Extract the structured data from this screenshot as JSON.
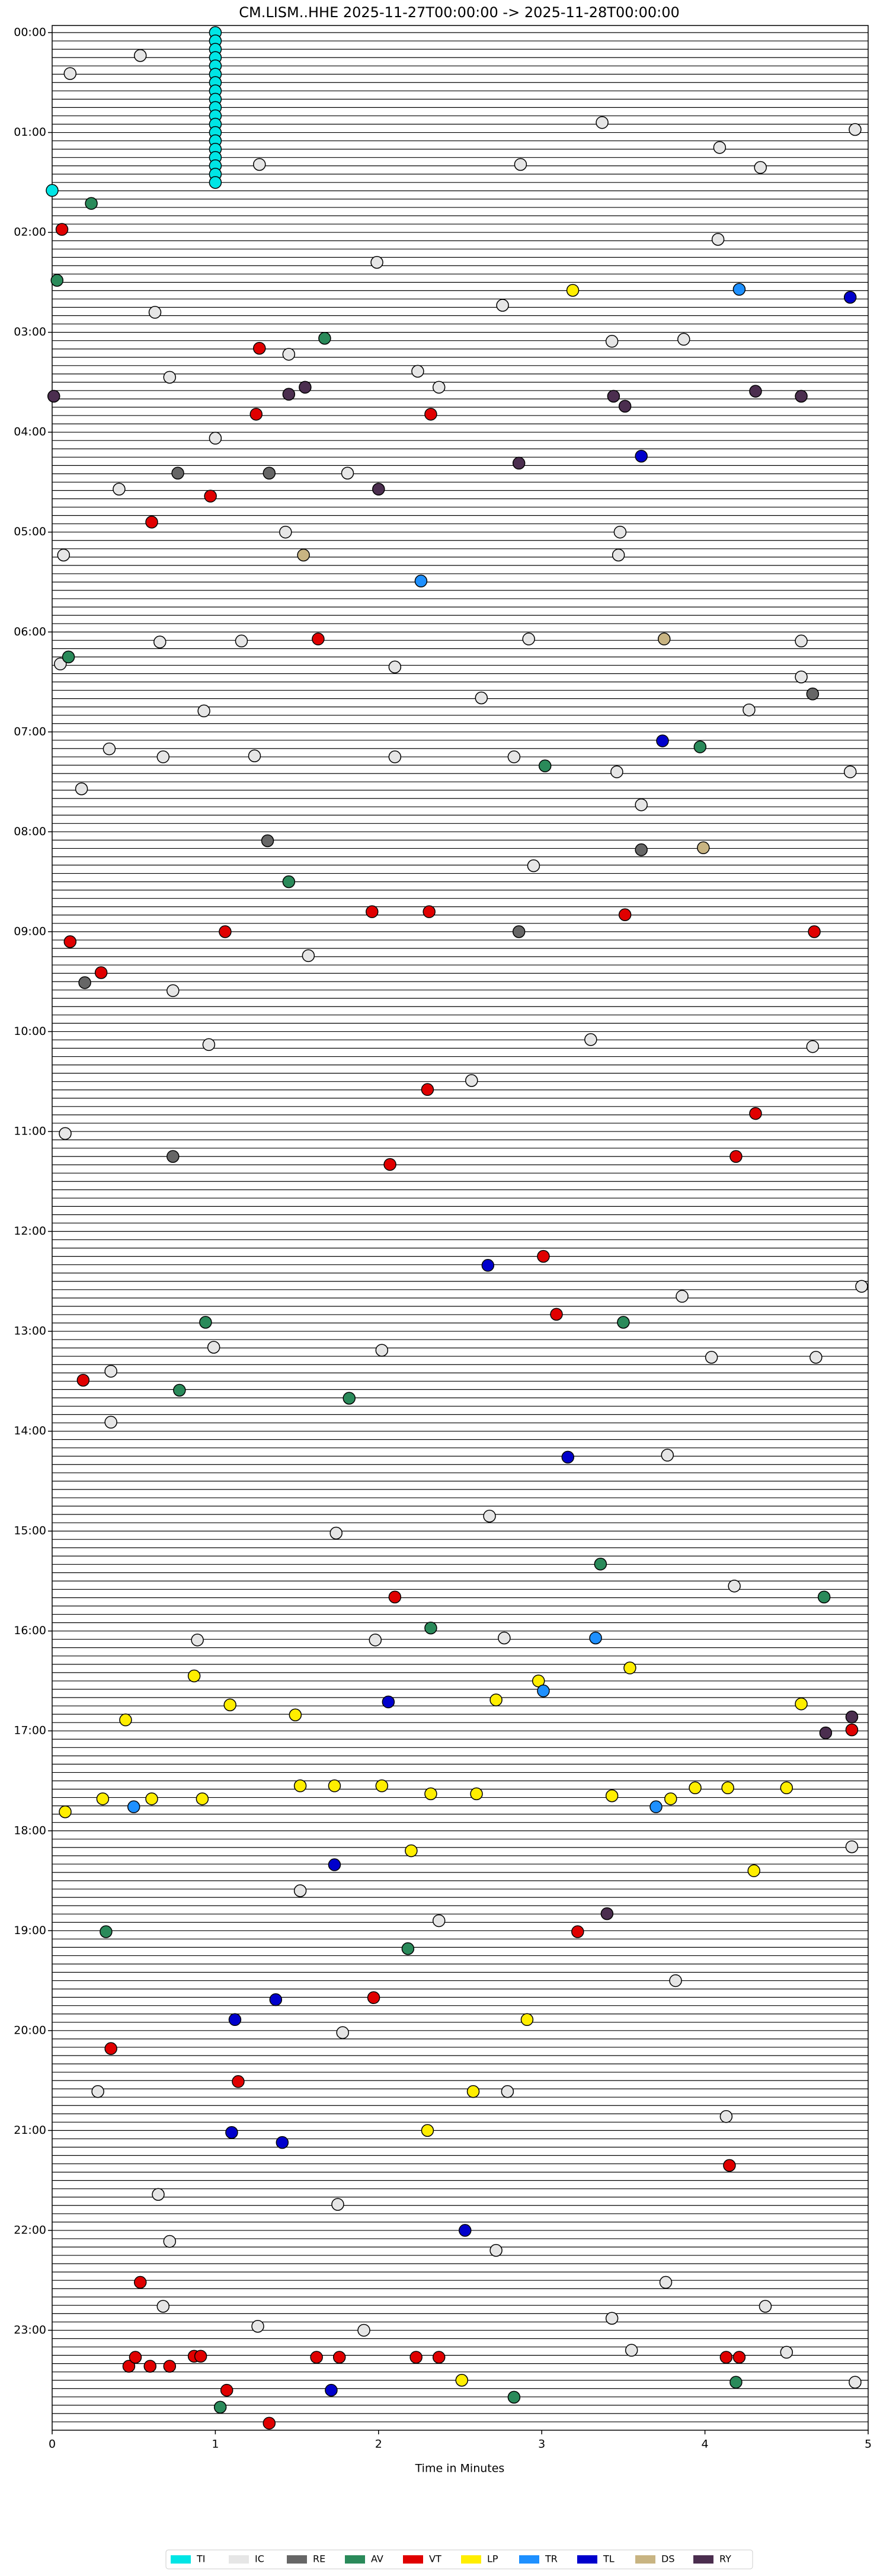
{
  "chart_data": {
    "type": "scatter",
    "title": "CM.LISM..HHE  2025-11-27T00:00:00 -> 2025-11-28T00:00:00",
    "x_label": "Time in Minutes",
    "xlim": [
      0,
      5
    ],
    "xticks": [
      0,
      1,
      2,
      3,
      4,
      5
    ],
    "ylim": [
      0,
      24
    ],
    "invert_y": true,
    "yticks": [
      {
        "value": 0,
        "label": "00:00"
      },
      {
        "value": 1,
        "label": "01:00"
      },
      {
        "value": 2,
        "label": "02:00"
      },
      {
        "value": 3,
        "label": "03:00"
      },
      {
        "value": 4,
        "label": "04:00"
      },
      {
        "value": 5,
        "label": "05:00"
      },
      {
        "value": 6,
        "label": "06:00"
      },
      {
        "value": 7,
        "label": "07:00"
      },
      {
        "value": 8,
        "label": "08:00"
      },
      {
        "value": 9,
        "label": "09:00"
      },
      {
        "value": 10,
        "label": "10:00"
      },
      {
        "value": 11,
        "label": "11:00"
      },
      {
        "value": 12,
        "label": "12:00"
      },
      {
        "value": 13,
        "label": "13:00"
      },
      {
        "value": 14,
        "label": "14:00"
      },
      {
        "value": 15,
        "label": "15:00"
      },
      {
        "value": 16,
        "label": "16:00"
      },
      {
        "value": 17,
        "label": "17:00"
      },
      {
        "value": 18,
        "label": "18:00"
      },
      {
        "value": 19,
        "label": "19:00"
      },
      {
        "value": 20,
        "label": "20:00"
      },
      {
        "value": 21,
        "label": "21:00"
      },
      {
        "value": 22,
        "label": "22:00"
      },
      {
        "value": 23,
        "label": "23:00"
      }
    ],
    "legend": "bottom",
    "series": [
      {
        "name": "TI",
        "color": "#00e5e5",
        "x": [
          1,
          1,
          1,
          1,
          1,
          1,
          1,
          1,
          1,
          1,
          1,
          1,
          1,
          1,
          1,
          1,
          1,
          1,
          1,
          0
        ],
        "y": [
          0,
          0.083,
          0.167,
          0.25,
          0.333,
          0.417,
          0.5,
          0.583,
          0.667,
          0.75,
          0.833,
          0.917,
          1,
          1.083,
          1.167,
          1.25,
          1.333,
          1.417,
          1.5,
          1.58
        ]
      },
      {
        "name": "IC",
        "color": "#e6e6e6",
        "x": [
          0.11,
          0.54,
          4.09,
          4.92,
          3.37,
          1.27,
          2.87,
          4.34,
          1.99,
          0.63,
          2.76,
          4.08,
          1.45,
          2.24,
          2.37,
          3.43,
          3.87,
          0.72,
          1.0,
          1.81,
          0.41,
          1.43,
          3.48,
          0.07,
          3.47,
          0.66,
          1.16,
          2.92,
          4.59,
          0.05,
          2.1,
          4.59,
          0.93,
          2.63,
          4.27,
          0.35,
          0.68,
          1.24,
          2.1,
          2.83,
          3.46,
          4.89,
          0.18,
          2.95,
          3.61,
          1.57,
          0.74,
          0.96,
          3.3,
          4.66,
          0.08,
          2.57,
          3.86,
          4.96,
          0.36,
          0.99,
          2.02,
          4.04,
          4.68,
          0.36,
          3.77,
          2.68,
          1.74,
          4.18,
          0.89,
          1.98,
          2.77,
          4.9,
          1.52,
          2.37,
          3.82,
          1.78,
          0.28,
          2.79,
          4.13,
          0.65,
          1.75,
          0.72,
          2.72,
          3.76,
          4.37,
          0.68,
          3.43,
          1.91,
          1.26,
          3.55,
          4.5,
          4.92
        ],
        "y": [
          0.41,
          0.23,
          1.15,
          0.97,
          0.9,
          1.32,
          1.32,
          1.35,
          2.3,
          2.8,
          2.73,
          2.07,
          3.22,
          3.39,
          3.55,
          3.09,
          3.07,
          3.45,
          4.06,
          4.41,
          4.57,
          5.0,
          5.0,
          5.23,
          5.23,
          6.1,
          6.09,
          6.07,
          6.09,
          6.32,
          6.35,
          6.45,
          6.79,
          6.66,
          6.78,
          7.17,
          7.25,
          7.24,
          7.25,
          7.25,
          7.4,
          7.4,
          7.57,
          8.34,
          7.73,
          9.24,
          9.59,
          10.13,
          10.08,
          10.15,
          11.02,
          10.49,
          12.65,
          12.55,
          13.4,
          13.16,
          13.19,
          13.26,
          13.26,
          13.91,
          14.24,
          14.85,
          15.02,
          15.55,
          16.09,
          16.09,
          16.07,
          18.16,
          18.6,
          18.9,
          19.5,
          20.02,
          20.61,
          20.61,
          20.86,
          21.64,
          21.74,
          22.11,
          22.2,
          22.52,
          22.76,
          22.76,
          22.88,
          23.0,
          22.96,
          23.2,
          23.22,
          23.52
        ]
      },
      {
        "name": "RE",
        "color": "#666666",
        "x": [
          0.77,
          1.33,
          0.74,
          1.32,
          2.86,
          3.61,
          4.66,
          0.2
        ],
        "y": [
          4.41,
          4.41,
          11.25,
          8.09,
          9.0,
          8.18,
          6.62,
          9.51
        ]
      },
      {
        "name": "AV",
        "color": "#2a8a5a",
        "x": [
          0.24,
          0.03,
          1.67,
          3.02,
          3.97,
          1.45,
          0.94,
          3.5,
          0.78,
          1.82,
          2.32,
          0.33,
          2.18,
          2.83,
          1.03,
          4.19,
          4.73,
          3.36,
          0.1
        ],
        "y": [
          1.71,
          2.48,
          3.06,
          7.34,
          7.15,
          8.5,
          12.91,
          12.91,
          13.59,
          13.67,
          15.97,
          19.01,
          19.18,
          23.67,
          23.77,
          23.52,
          15.66,
          15.33,
          6.25
        ]
      },
      {
        "name": "VT",
        "color": "#e00000",
        "x": [
          0.06,
          1.27,
          1.25,
          2.32,
          0.97,
          0.61,
          1.63,
          1.96,
          2.31,
          3.51,
          0.11,
          0.3,
          1.06,
          4.67,
          2.3,
          4.31,
          2.07,
          4.19,
          3.01,
          3.09,
          0.19,
          2.1,
          4.9,
          3.22,
          1.97,
          0.36,
          1.14,
          4.15,
          0.54,
          0.47,
          0.6,
          0.72,
          0.51,
          0.87,
          0.91,
          1.62,
          1.76,
          2.23,
          2.37,
          4.13,
          4.21,
          1.07,
          1.33
        ],
        "y": [
          1.97,
          3.16,
          3.82,
          3.82,
          4.64,
          4.9,
          6.07,
          8.8,
          8.8,
          8.83,
          9.1,
          9.41,
          9.0,
          9.0,
          10.58,
          10.82,
          11.33,
          11.25,
          12.25,
          12.83,
          13.49,
          15.66,
          16.99,
          19.01,
          19.67,
          20.18,
          20.51,
          21.35,
          22.52,
          23.36,
          23.36,
          23.36,
          23.27,
          23.26,
          23.26,
          23.27,
          23.27,
          23.27,
          23.27,
          23.27,
          23.27,
          23.6,
          23.93
        ]
      },
      {
        "name": "LP",
        "color": "#ffee00",
        "x": [
          3.19,
          1.49,
          0.45,
          0.08,
          0.31,
          0.61,
          0.92,
          1.52,
          1.73,
          2.02,
          2.32,
          2.6,
          2.98,
          3.43,
          3.79,
          3.94,
          4.14,
          4.5,
          4.3,
          2.91,
          2.58,
          2.3,
          2.51,
          2.2,
          1.09,
          0.87,
          2.72,
          3.54,
          4.59
        ],
        "y": [
          2.58,
          16.84,
          16.89,
          17.81,
          17.68,
          17.68,
          17.68,
          17.55,
          17.55,
          17.55,
          17.63,
          17.63,
          16.5,
          17.65,
          17.68,
          17.57,
          17.57,
          17.57,
          18.4,
          19.89,
          20.61,
          21.0,
          23.5,
          18.2,
          16.74,
          16.45,
          16.69,
          16.37,
          16.73
        ]
      },
      {
        "name": "TR",
        "color": "#1e90ff",
        "x": [
          4.21,
          2.26,
          3.33,
          3.7,
          0.5,
          3.01
        ],
        "y": [
          2.57,
          5.49,
          16.07,
          17.76,
          17.76,
          16.6
        ]
      },
      {
        "name": "TL",
        "color": "#0000cc",
        "x": [
          3.61,
          4.89,
          3.74,
          2.67,
          3.16,
          1.12,
          1.37,
          1.1,
          1.41,
          1.71,
          1.73,
          2.53,
          2.06
        ],
        "y": [
          4.24,
          2.65,
          7.09,
          12.34,
          14.26,
          19.89,
          19.69,
          21.02,
          21.12,
          23.6,
          18.34,
          22.0,
          16.71
        ]
      },
      {
        "name": "DS",
        "color": "#c8b482",
        "x": [
          1.54,
          3.75,
          3.99
        ],
        "y": [
          5.23,
          6.07,
          8.16
        ]
      },
      {
        "name": "RY",
        "color": "#4b2e4f",
        "x": [
          1.45,
          0.01,
          3.44,
          3.51,
          4.31,
          4.59,
          2.86,
          2.0,
          3.4,
          4.74,
          4.9,
          1.55
        ],
        "y": [
          3.62,
          3.64,
          3.64,
          3.74,
          3.59,
          3.64,
          4.31,
          4.57,
          18.83,
          17.02,
          16.86,
          3.55
        ]
      }
    ]
  }
}
